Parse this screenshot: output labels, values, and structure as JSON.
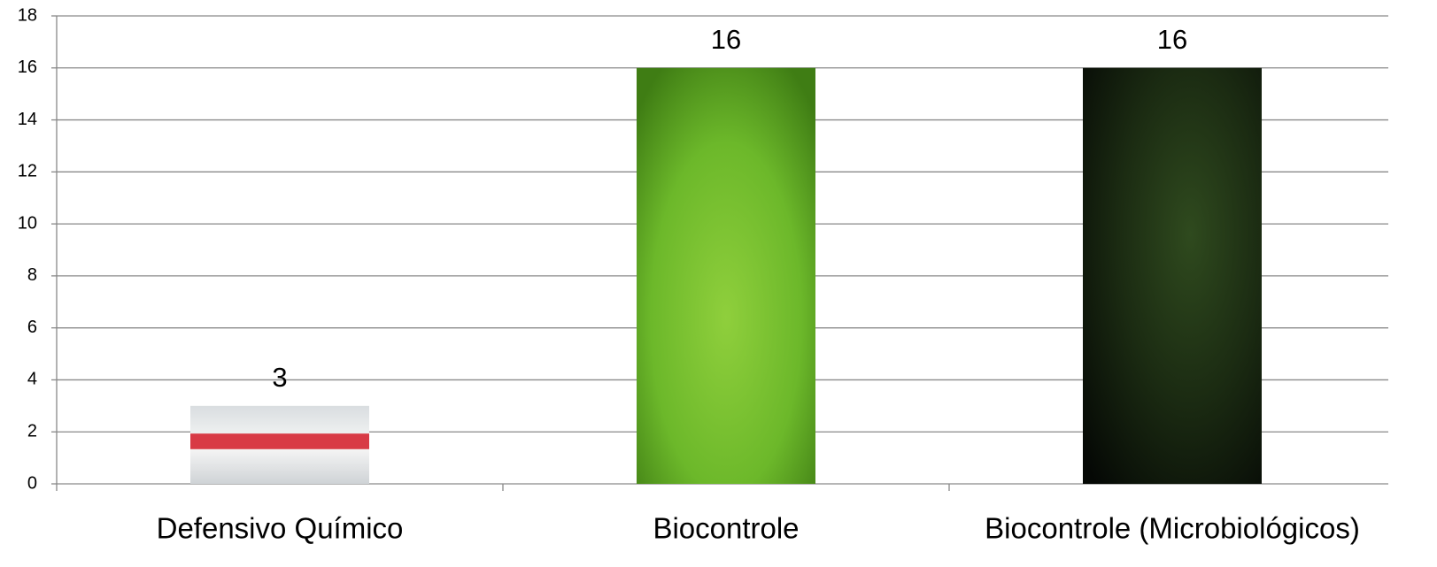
{
  "chart_data": {
    "type": "bar",
    "categories": [
      "Defensivo Químico",
      "Biocontrole",
      "Biocontrole (Microbiológicos)"
    ],
    "values": [
      3,
      16,
      16
    ],
    "ylim": [
      0,
      18
    ],
    "yticks": [
      0,
      2,
      4,
      6,
      8,
      10,
      12,
      14,
      16,
      18
    ],
    "grid": true
  }
}
